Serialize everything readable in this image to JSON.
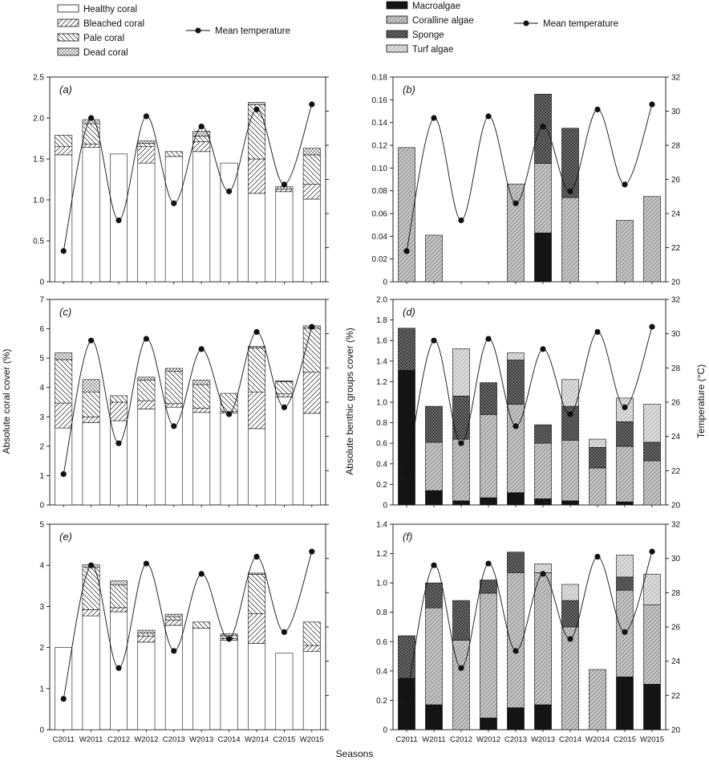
{
  "categories": [
    "C2011",
    "W2011",
    "C2012",
    "W2012",
    "C2013",
    "W2013",
    "C2014",
    "W2014",
    "C2015",
    "W2015"
  ],
  "temperature": [
    21.8,
    29.6,
    23.6,
    29.7,
    24.6,
    29.1,
    25.3,
    30.1,
    25.7,
    30.4
  ],
  "labels": {
    "left_y": "Absolute coral cover (%)",
    "right_ylabel_benthic": "Absolute benthic groups cover (%)",
    "temp_axis": "Temperature (°C)",
    "x": "Seasons"
  },
  "legends": {
    "coral": [
      "Healthy coral",
      "Bleached coral",
      "Pale coral",
      "Dead coral"
    ],
    "benthic": [
      "Macroalgae",
      "Coralline algae",
      "Sponge",
      "Turf algae"
    ],
    "temperature": "Mean temperature"
  },
  "colors": {
    "macroalgae": "#141414",
    "coralline": "#c4c4c4",
    "sponge": "#6e6e6e",
    "turf": "#dcdcdc",
    "healthy": "#ffffff",
    "line": "#111111"
  },
  "chart_data": [
    {
      "panel": "a",
      "type": "bar",
      "stacked": true,
      "ylim": [
        0,
        2.5
      ],
      "ticks": [
        "0",
        "0.5",
        "1.0",
        "1.5",
        "2.0",
        "2.5"
      ],
      "series": [
        {
          "name": "Healthy coral",
          "values": [
            1.55,
            1.64,
            1.56,
            1.45,
            1.53,
            1.59,
            1.45,
            1.08,
            1.1,
            1.01
          ]
        },
        {
          "name": "Bleached coral",
          "values": [
            0.1,
            0.04,
            0,
            0.2,
            0,
            0.12,
            0,
            0.42,
            0.03,
            0.18
          ]
        },
        {
          "name": "Pale coral",
          "values": [
            0.14,
            0.25,
            0,
            0.04,
            0.06,
            0.07,
            0,
            0.66,
            0,
            0.36
          ]
        },
        {
          "name": "Dead coral",
          "values": [
            0,
            0.05,
            0,
            0.03,
            0,
            0.06,
            0,
            0.03,
            0.03,
            0.08
          ]
        }
      ]
    },
    {
      "panel": "b",
      "type": "bar",
      "stacked": true,
      "ylim": [
        0,
        0.18
      ],
      "ticks": [
        "0",
        "0.02",
        "0.04",
        "0.06",
        "0.08",
        "0.10",
        "0.12",
        "0.14",
        "0.16",
        "0.18"
      ],
      "series": [
        {
          "name": "Macroalgae",
          "values": [
            0,
            0,
            0,
            0,
            0,
            0.043,
            0,
            0,
            0,
            0
          ]
        },
        {
          "name": "Coralline algae",
          "values": [
            0.118,
            0.041,
            0,
            0,
            0.086,
            0.061,
            0.074,
            0,
            0.054,
            0.075
          ]
        },
        {
          "name": "Sponge",
          "values": [
            0,
            0,
            0,
            0,
            0,
            0.061,
            0.061,
            0,
            0,
            0
          ]
        },
        {
          "name": "Turf algae",
          "values": [
            0,
            0,
            0,
            0,
            0,
            0,
            0,
            0,
            0,
            0
          ]
        }
      ]
    },
    {
      "panel": "c",
      "type": "bar",
      "stacked": true,
      "ylim": [
        0,
        7
      ],
      "ticks": [
        "0",
        "1",
        "2",
        "3",
        "4",
        "5",
        "6",
        "7"
      ],
      "series": [
        {
          "name": "Healthy coral",
          "values": [
            2.62,
            2.8,
            2.87,
            3.27,
            3.33,
            3.15,
            3.13,
            2.6,
            3.68,
            3.12
          ]
        },
        {
          "name": "Bleached coral",
          "values": [
            0.85,
            0.2,
            0.63,
            0.28,
            0.12,
            0.15,
            0.05,
            1.25,
            0.1,
            1.4
          ]
        },
        {
          "name": "Pale coral",
          "values": [
            1.48,
            0.85,
            0.22,
            0.7,
            1.1,
            0.8,
            0.62,
            1.5,
            0.42,
            1.5
          ]
        },
        {
          "name": "Dead coral",
          "values": [
            0.23,
            0.42,
            0,
            0.1,
            0.1,
            0.15,
            0,
            0.05,
            0.03,
            0.08
          ]
        }
      ]
    },
    {
      "panel": "d",
      "type": "bar",
      "stacked": true,
      "ylim": [
        0,
        2.0
      ],
      "ticks": [
        "0",
        "0.2",
        "0.4",
        "0.6",
        "0.8",
        "1.0",
        "1.2",
        "1.4",
        "1.6",
        "1.8",
        "2.0"
      ],
      "series": [
        {
          "name": "Macroalgae",
          "values": [
            1.31,
            0.14,
            0.04,
            0.07,
            0.12,
            0.06,
            0.04,
            0,
            0.03,
            0
          ]
        },
        {
          "name": "Coralline algae",
          "values": [
            0,
            0.47,
            0.6,
            0.81,
            0.86,
            0.54,
            0.59,
            0.36,
            0.54,
            0.43
          ]
        },
        {
          "name": "Sponge",
          "values": [
            0.41,
            0.35,
            0.42,
            0.31,
            0.43,
            0.18,
            0.33,
            0.2,
            0.24,
            0.18
          ]
        },
        {
          "name": "Turf algae",
          "values": [
            0,
            0,
            0.46,
            0,
            0.07,
            0,
            0.26,
            0.08,
            0.23,
            0.37
          ]
        }
      ]
    },
    {
      "panel": "e",
      "type": "bar",
      "stacked": true,
      "ylim": [
        0,
        5
      ],
      "ticks": [
        "0",
        "1",
        "2",
        "3",
        "4",
        "5"
      ],
      "series": [
        {
          "name": "Healthy coral",
          "values": [
            2.0,
            2.77,
            2.87,
            2.13,
            2.54,
            2.47,
            2.18,
            2.1,
            1.86,
            1.9
          ]
        },
        {
          "name": "Bleached coral",
          "values": [
            0,
            0.15,
            0.1,
            0.15,
            0.13,
            0,
            0.04,
            0.72,
            0,
            0.15
          ]
        },
        {
          "name": "Pale coral",
          "values": [
            0,
            1.03,
            0.55,
            0.07,
            0.08,
            0.15,
            0.07,
            0.96,
            0,
            0.57
          ]
        },
        {
          "name": "Dead coral",
          "values": [
            0,
            0.06,
            0.1,
            0.07,
            0.06,
            0,
            0.04,
            0.03,
            0,
            0
          ]
        }
      ]
    },
    {
      "panel": "f",
      "type": "bar",
      "stacked": true,
      "ylim": [
        0,
        1.4
      ],
      "ticks": [
        "0",
        "0.2",
        "0.4",
        "0.6",
        "0.8",
        "1.0",
        "1.2",
        "1.4"
      ],
      "series": [
        {
          "name": "Macroalgae",
          "values": [
            0.35,
            0.17,
            0,
            0.08,
            0.15,
            0.17,
            0,
            0,
            0.36,
            0.31
          ]
        },
        {
          "name": "Coralline algae",
          "values": [
            0,
            0.66,
            0.61,
            0.85,
            0.92,
            0.9,
            0.7,
            0.41,
            0.59,
            0.54
          ]
        },
        {
          "name": "Sponge",
          "values": [
            0.29,
            0.17,
            0.27,
            0.09,
            0.14,
            0,
            0.18,
            0,
            0.09,
            0
          ]
        },
        {
          "name": "Turf algae",
          "values": [
            0,
            0,
            0,
            0,
            0,
            0.06,
            0.11,
            0,
            0.15,
            0.21
          ]
        }
      ]
    }
  ]
}
